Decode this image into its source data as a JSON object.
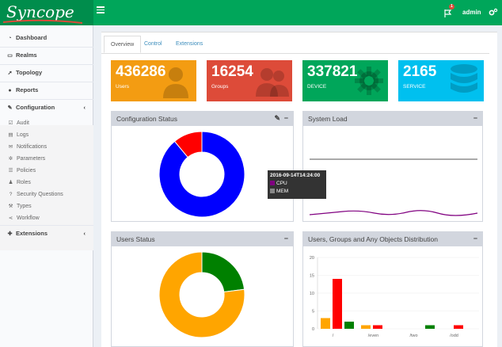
{
  "header": {
    "logo_text": "Syncope",
    "notifications_count": "1",
    "user": "admin"
  },
  "sidebar": {
    "items": [
      {
        "label": "Dashboard",
        "icon": "dashboard-icon"
      },
      {
        "label": "Realms",
        "icon": "folder-icon"
      },
      {
        "label": "Topology",
        "icon": "rocket-icon"
      },
      {
        "label": "Reports",
        "icon": "pie-icon"
      },
      {
        "label": "Configuration",
        "icon": "edit-icon",
        "chevron": "‹"
      },
      {
        "label": "Extensions",
        "icon": "puzzle-icon",
        "chevron": "‹"
      }
    ],
    "configuration_sub": [
      {
        "label": "Audit",
        "icon": "check-square-icon"
      },
      {
        "label": "Logs",
        "icon": "file-icon"
      },
      {
        "label": "Notifications",
        "icon": "envelope-icon"
      },
      {
        "label": "Parameters",
        "icon": "cog-icon"
      },
      {
        "label": "Policies",
        "icon": "list-icon"
      },
      {
        "label": "Roles",
        "icon": "users-icon"
      },
      {
        "label": "Security Questions",
        "icon": "question-icon"
      },
      {
        "label": "Types",
        "icon": "wrench-icon"
      },
      {
        "label": "Workflow",
        "icon": "share-icon"
      }
    ]
  },
  "tabs": [
    "Overview",
    "Control",
    "Extensions"
  ],
  "tiles": [
    {
      "value": "436286",
      "label": "Users",
      "color": "#f39c12"
    },
    {
      "value": "16254",
      "label": "Groups",
      "color": "#dd4b39"
    },
    {
      "value": "337821",
      "label": "DEVICE",
      "color": "#00a65a"
    },
    {
      "value": "2165",
      "label": "SERVICE",
      "color": "#00c0ef"
    }
  ],
  "boxes": {
    "config_status": {
      "title": "Configuration Status",
      "tool1": "✎",
      "tool2": "−"
    },
    "system_load": {
      "title": "System Load",
      "tool": "−"
    },
    "users_status": {
      "title": "Users Status",
      "tool": "−"
    },
    "distribution": {
      "title": "Users, Groups and Any Objects Distribution",
      "tool": "−"
    }
  },
  "tooltip": {
    "timestamp": "2016-09-14T14:24:00",
    "cpu": "CPU",
    "mem": "MEM",
    "cpu_color": "#800080",
    "mem_color": "#888888"
  },
  "chart_data": [
    {
      "type": "pie",
      "id": "configuration-status",
      "slices": [
        {
          "value": 89,
          "color": "#0000ff"
        },
        {
          "value": 11,
          "color": "#ff0000"
        }
      ]
    },
    {
      "type": "pie",
      "id": "users-status",
      "slices": [
        {
          "value": 77,
          "color": "#ffa500"
        },
        {
          "value": 23,
          "color": "#008000"
        }
      ]
    },
    {
      "type": "bar",
      "id": "objects-distribution",
      "categories": [
        "/",
        "/even",
        "/two",
        "/odd"
      ],
      "series": [
        {
          "color": "#ffa500",
          "values": [
            3,
            1,
            0,
            0
          ]
        },
        {
          "color": "#ff0000",
          "values": [
            14,
            1,
            0,
            1
          ]
        },
        {
          "color": "#008000",
          "values": [
            2,
            0,
            1,
            0
          ]
        }
      ],
      "ylim": [
        0,
        20
      ],
      "yticks": [
        0,
        5,
        10,
        15,
        20
      ]
    }
  ]
}
